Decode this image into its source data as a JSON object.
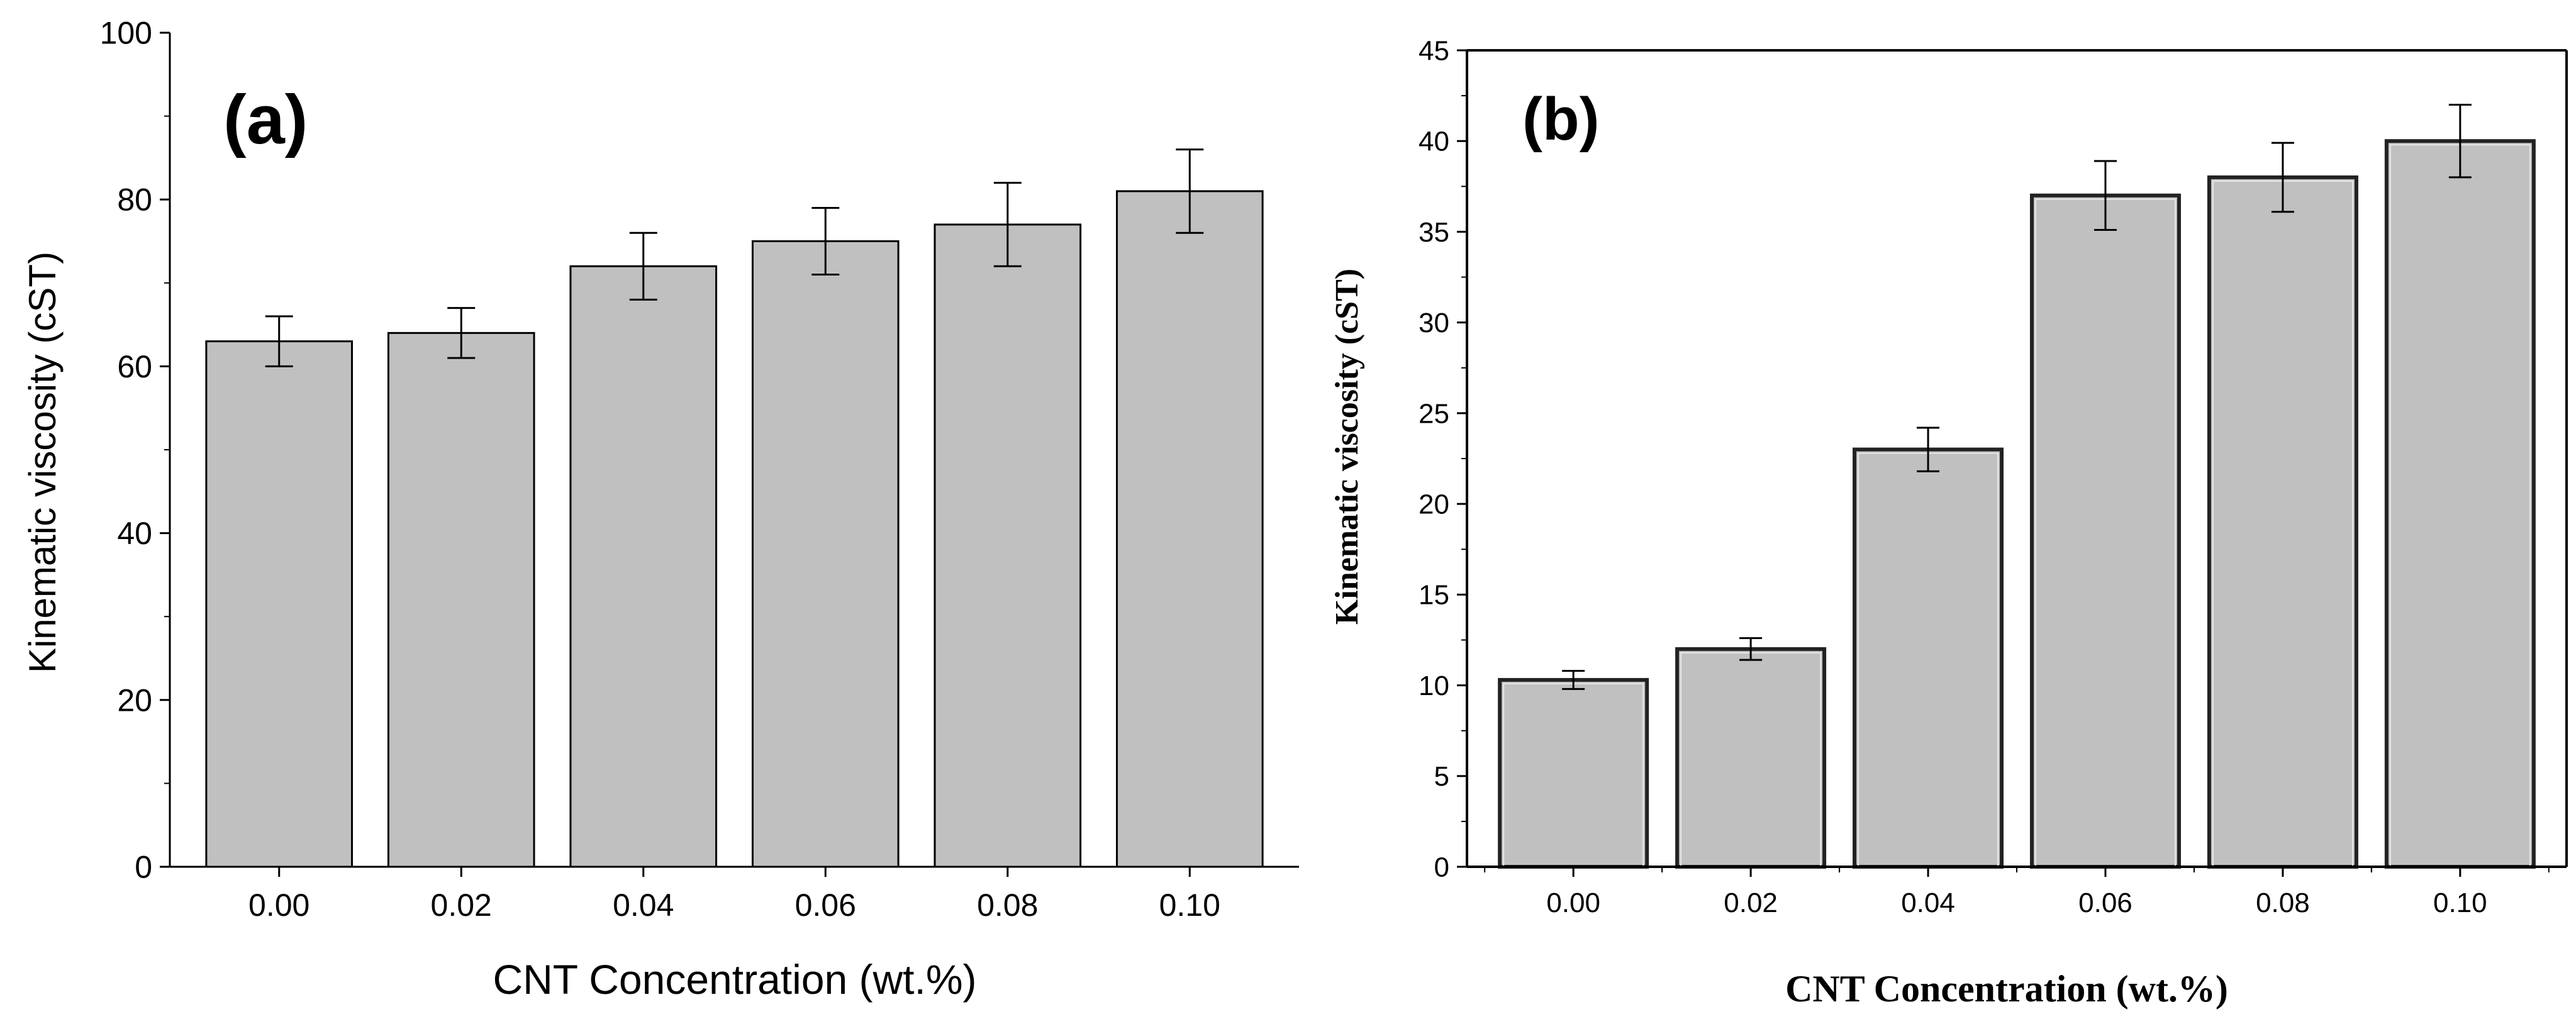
{
  "chart_data": [
    {
      "panel_label": "(a)",
      "type": "bar",
      "categories": [
        "0.00",
        "0.02",
        "0.04",
        "0.06",
        "0.08",
        "0.10"
      ],
      "values": [
        63,
        64,
        72,
        75,
        77,
        81
      ],
      "error": [
        3,
        3,
        4,
        4,
        5,
        5
      ],
      "xlabel": "CNT Concentration (wt.%)",
      "ylabel": "Kinematic viscosity (cST)",
      "ylim": [
        0,
        100
      ],
      "yticks": [
        "0",
        "20",
        "40",
        "60",
        "80",
        "100"
      ],
      "bar_color": "#c0c0c0"
    },
    {
      "panel_label": "(b)",
      "type": "bar",
      "categories": [
        "0.00",
        "0.02",
        "0.04",
        "0.06",
        "0.08",
        "0.10"
      ],
      "values": [
        10.3,
        12.0,
        23.0,
        37.0,
        38.0,
        40.0
      ],
      "error": [
        0.5,
        0.6,
        1.2,
        1.9,
        1.9,
        2.0
      ],
      "xlabel": "CNT Concentration (wt.%)",
      "ylabel": "Kinematic viscosity (cST)",
      "ylim": [
        0,
        45
      ],
      "yticks": [
        "0",
        "5",
        "10",
        "15",
        "20",
        "25",
        "30",
        "35",
        "40",
        "45"
      ],
      "bar_color": "#c0c0c0"
    }
  ]
}
